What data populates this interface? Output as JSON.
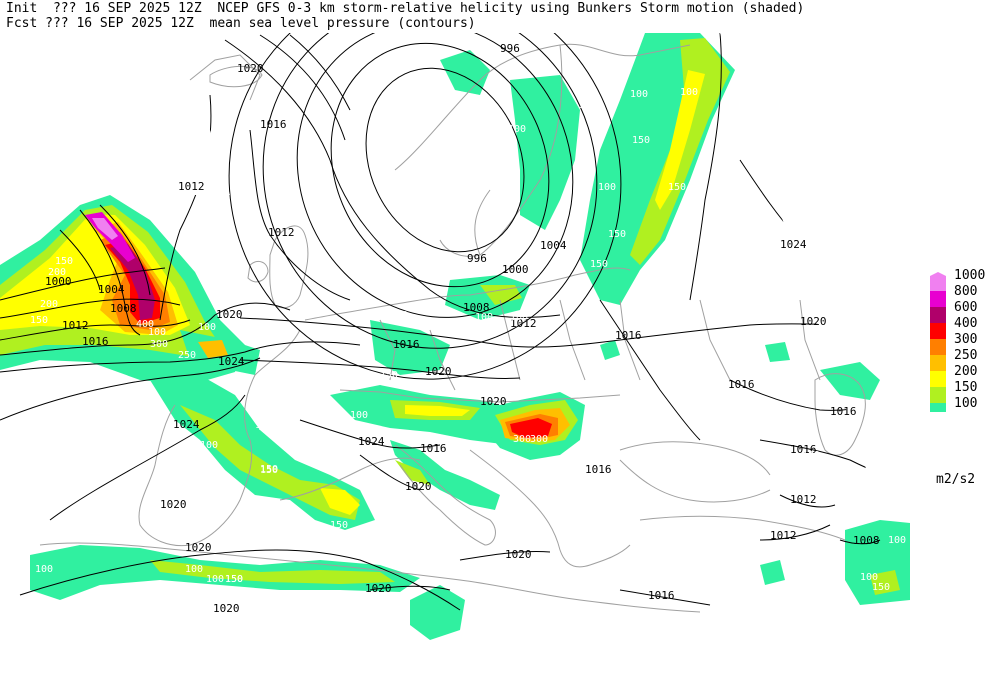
{
  "header": {
    "line1": "Init  ??? 16 SEP 2025 12Z  NCEP GFS 0-3 km storm-relative helicity using Bunkers Storm motion (shaded)",
    "line2": "Fcst ??? 16 SEP 2025 12Z  mean sea level pressure (contours)"
  },
  "legend": {
    "units": "m2/s2",
    "levels": [
      "1000",
      "800",
      "600",
      "400",
      "300",
      "250",
      "200",
      "150",
      "100"
    ],
    "colors": [
      "#f080f0",
      "#e800d0",
      "#b0006a",
      "#ff0000",
      "#ff7f00",
      "#ffbf00",
      "#ffff00",
      "#b0f020",
      "#30f0a0"
    ]
  },
  "colors": {
    "coast": "#a0a0a0",
    "contour": "#000000",
    "h100": "#30f0a0",
    "h150": "#b0f020",
    "h200": "#ffff00",
    "h250": "#ffbf00",
    "h300": "#ff7f00",
    "h400": "#ff0000",
    "h600": "#b0006a",
    "h800": "#e800d0"
  },
  "contour_labels": [
    "996",
    "1020",
    "1016",
    "1012",
    "1012",
    "1000",
    "1004",
    "1008",
    "1012",
    "1016",
    "996",
    "1000",
    "1004",
    "1008",
    "1012",
    "1016",
    "1020",
    "1024",
    "1020",
    "1016",
    "1020",
    "1024",
    "1024",
    "1020",
    "1016",
    "1020",
    "1020",
    "1016",
    "1016",
    "1016",
    "1012",
    "1012",
    "1008",
    "1024",
    "1020",
    "1020",
    "1020",
    "1016",
    "1016",
    "1020"
  ],
  "helicity_labels": [
    "200",
    "200",
    "150",
    "150",
    "100",
    "100",
    "400",
    "300",
    "250",
    "100",
    "150",
    "150",
    "150",
    "100",
    "100",
    "100",
    "100",
    "150",
    "150",
    "100",
    "100",
    "150",
    "100",
    "100",
    "100",
    "100",
    "150",
    "100",
    "150",
    "150",
    "100",
    "100",
    "100",
    "150",
    "100",
    "150",
    "100",
    "100",
    "100",
    "100",
    "150",
    "300",
    "300",
    "150",
    "100",
    "100",
    "100"
  ]
}
